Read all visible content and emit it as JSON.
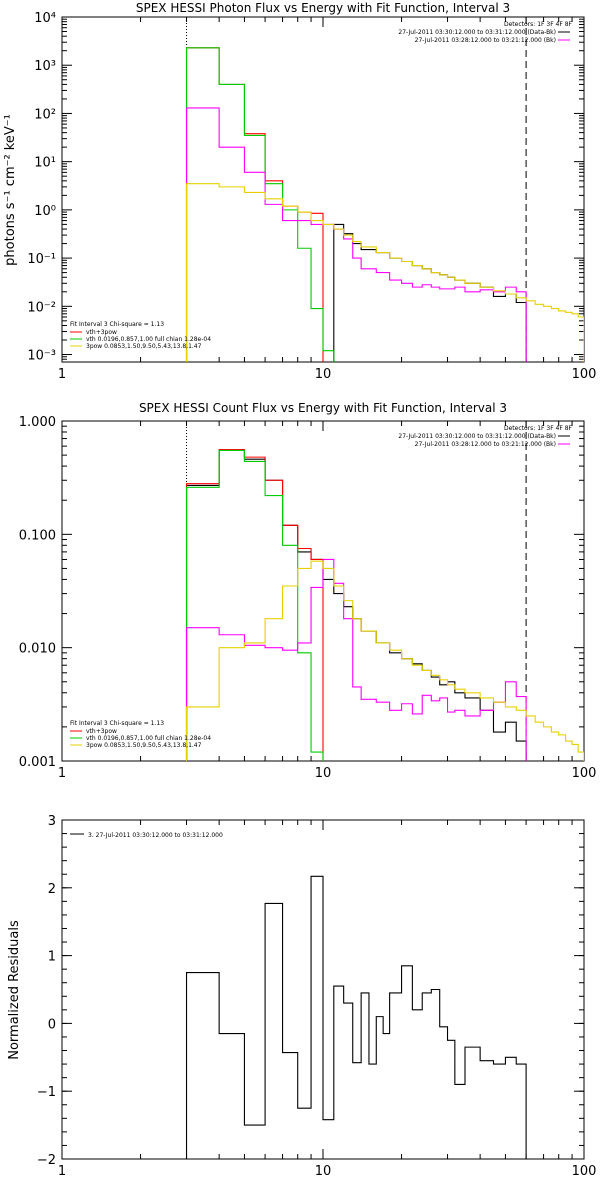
{
  "chart_data": [
    {
      "type": "line",
      "title": "SPEX HESSI Photon Flux vs Energy with Fit Function, Interval 3",
      "ylabel": "photons s⁻¹ cm⁻² keV⁻¹",
      "xlabel": "",
      "xscale": "log",
      "yscale": "log",
      "xlim": [
        1,
        100
      ],
      "ylim": [
        0.0007,
        10000
      ],
      "xticks": [
        {
          "v": 1,
          "label": "1"
        },
        {
          "v": 10,
          "label": "10"
        },
        {
          "v": 100,
          "label": "100"
        }
      ],
      "yticks": [
        {
          "v": 0.001,
          "label": "10⁻³"
        },
        {
          "v": 0.01,
          "label": "10⁻²"
        },
        {
          "v": 0.1,
          "label": "10⁻¹"
        },
        {
          "v": 1,
          "label": "10⁰"
        },
        {
          "v": 10,
          "label": "10¹"
        },
        {
          "v": 100,
          "label": "10²"
        },
        {
          "v": 1000,
          "label": "10³"
        },
        {
          "v": 10000,
          "label": "10⁴"
        }
      ],
      "vlines": [
        {
          "x": 3,
          "style": "dotted"
        },
        {
          "x": 60,
          "style": "dashed"
        }
      ],
      "legend_top": {
        "header": "Detectors: 1F 3F 4F 8F",
        "entries": [
          {
            "label": "27-Jul-2011 03:30:12.000 to 03:31:12.000 (Data-Bk)",
            "color": "#000000"
          },
          {
            "label": "27-Jul-2011 03:28:12.000 to 03:21:12.000 (Bk)",
            "color": "#ff00ff"
          }
        ]
      },
      "legend_bottom": {
        "header": "Fit Interval 3    Chi-square = 1.13",
        "entries": [
          {
            "label": "vth+3pow",
            "color": "#ff0000"
          },
          {
            "label": "vth 0.0196,0.857,1.00  full chian 1.28e-04",
            "color": "#00cc00"
          },
          {
            "label": "3pow 0.0853,1.50,9.50,5.43,13.8,1.47",
            "color": "#e6d000"
          }
        ]
      },
      "series": [
        {
          "key": "black",
          "color": "#000000",
          "edges": [
            3,
            4,
            5,
            6,
            7,
            8,
            9,
            10,
            11,
            12,
            13,
            14,
            16,
            18,
            20,
            22,
            24,
            26,
            28,
            30,
            32,
            35,
            40,
            45,
            50,
            55,
            60
          ],
          "values": [
            0,
            0,
            0,
            0,
            0,
            0,
            0,
            0,
            0.5,
            0.32,
            0.2,
            0.15,
            0.13,
            0.1,
            0.085,
            0.07,
            0.06,
            0.05,
            0.045,
            0.04,
            0.035,
            0.03,
            0.025,
            0.016,
            0.018,
            0.012
          ]
        },
        {
          "key": "red",
          "color": "#ff0000",
          "edges": [
            3,
            4,
            5,
            6,
            7,
            8,
            9,
            10
          ],
          "values": [
            2300,
            400,
            38,
            4,
            1.2,
            0.9,
            0.85
          ]
        },
        {
          "key": "green",
          "color": "#00cc00",
          "edges": [
            3,
            4,
            5,
            6,
            7,
            8,
            9,
            10,
            11
          ],
          "values": [
            2300,
            400,
            35,
            3.5,
            1,
            0.16,
            0.009,
            0.0012
          ]
        },
        {
          "key": "magenta",
          "color": "#ff00ff",
          "edges": [
            3,
            4,
            5,
            6,
            7,
            8,
            9,
            10,
            11,
            12,
            13,
            14,
            16,
            18,
            20,
            22,
            24,
            26,
            28,
            30,
            32,
            35,
            40,
            45,
            50,
            55,
            60
          ],
          "values": [
            130,
            20,
            6,
            1.3,
            0.6,
            0.6,
            0.5,
            0.5,
            0.4,
            0.25,
            0.1,
            0.06,
            0.05,
            0.035,
            0.03,
            0.025,
            0.028,
            0.025,
            0.023,
            0.023,
            0.025,
            0.02,
            0.022,
            0.02,
            0.025,
            0.02
          ]
        },
        {
          "key": "yellow",
          "color": "#e6d000",
          "edges": [
            3,
            4,
            5,
            6,
            7,
            8,
            9,
            10,
            11,
            12,
            13,
            14,
            16,
            18,
            20,
            22,
            24,
            26,
            28,
            30,
            32,
            35,
            40,
            45,
            50,
            55,
            60,
            65,
            70,
            75,
            80,
            85,
            90,
            95,
            100
          ],
          "values": [
            3.5,
            3,
            2.3,
            1.7,
            1.2,
            0.9,
            0.6,
            0.5,
            0.4,
            0.3,
            0.22,
            0.17,
            0.13,
            0.1,
            0.085,
            0.07,
            0.06,
            0.05,
            0.045,
            0.04,
            0.035,
            0.03,
            0.025,
            0.021,
            0.018,
            0.015,
            0.013,
            0.011,
            0.01,
            0.009,
            0.008,
            0.0075,
            0.007,
            0.006
          ]
        }
      ]
    },
    {
      "type": "line",
      "title": "SPEX HESSI Count Flux vs Energy with Fit Function, Interval 3",
      "ylabel": "",
      "xlabel": "",
      "xscale": "log",
      "yscale": "log",
      "xlim": [
        1,
        100
      ],
      "ylim": [
        0.001,
        1
      ],
      "xticks": [
        {
          "v": 1,
          "label": "1"
        },
        {
          "v": 10,
          "label": "10"
        },
        {
          "v": 100,
          "label": "100"
        }
      ],
      "yticks": [
        {
          "v": 0.001,
          "label": "0.001"
        },
        {
          "v": 0.01,
          "label": "0.010"
        },
        {
          "v": 0.1,
          "label": "0.100"
        },
        {
          "v": 1,
          "label": "1.000"
        }
      ],
      "vlines": [
        {
          "x": 3,
          "style": "dotted"
        },
        {
          "x": 60,
          "style": "dashed"
        }
      ],
      "legend_top": {
        "header": "Detectors: 1F 3F 4F 8F",
        "entries": [
          {
            "label": "27-Jul-2011 03:30:12.000 to 03:31:12.000 (Data-Bk)",
            "color": "#000000"
          },
          {
            "label": "27-Jul-2011 03:28:12.000 to 03:21:12.000 (Bk)",
            "color": "#ff00ff"
          }
        ]
      },
      "legend_bottom": {
        "header": "Fit Interval 3    Chi-square = 1.13",
        "entries": [
          {
            "label": "vth+3pow",
            "color": "#ff0000"
          },
          {
            "label": "vth 0.0196,0.857,1.00  full chian 1.28e-04",
            "color": "#00cc00"
          },
          {
            "label": "3pow 0.0853,1.50,9.50,5.43,13.8,1.47",
            "color": "#e6d000"
          }
        ]
      },
      "series": [
        {
          "key": "black",
          "color": "#000000",
          "edges": [
            3,
            4,
            5,
            6,
            7,
            8,
            9,
            10,
            11,
            12,
            13,
            14,
            16,
            18,
            20,
            22,
            24,
            26,
            28,
            30,
            32,
            35,
            40,
            45,
            50,
            55,
            60
          ],
          "values": [
            0.27,
            0.55,
            0.46,
            0.3,
            0.12,
            0.07,
            0.06,
            0.04,
            0.03,
            0.023,
            0.018,
            0.014,
            0.011,
            0.009,
            0.008,
            0.0072,
            0.0063,
            0.0055,
            0.0047,
            0.005,
            0.004,
            0.0036,
            0.0028,
            0.0018,
            0.0022,
            0.0015
          ]
        },
        {
          "key": "red",
          "color": "#ff0000",
          "edges": [
            3,
            4,
            5,
            6,
            7,
            8,
            9,
            10
          ],
          "values": [
            0.28,
            0.56,
            0.48,
            0.3,
            0.12,
            0.075,
            0.06
          ]
        },
        {
          "key": "green",
          "color": "#00cc00",
          "edges": [
            3,
            4,
            5,
            6,
            7,
            8,
            9,
            10
          ],
          "values": [
            0.26,
            0.55,
            0.44,
            0.22,
            0.08,
            0.009,
            0.0012
          ]
        },
        {
          "key": "magenta",
          "color": "#ff00ff",
          "edges": [
            3,
            4,
            5,
            6,
            7,
            8,
            9,
            10,
            11,
            12,
            13,
            14,
            16,
            18,
            20,
            22,
            24,
            26,
            28,
            30,
            32,
            35,
            40,
            45,
            50,
            55,
            60
          ],
          "values": [
            0.015,
            0.013,
            0.0105,
            0.01,
            0.0095,
            0.011,
            0.034,
            0.06,
            0.037,
            0.018,
            0.0045,
            0.0035,
            0.0033,
            0.0028,
            0.0032,
            0.0026,
            0.0038,
            0.0034,
            0.0036,
            0.0027,
            0.0028,
            0.0025,
            0.0028,
            0.0033,
            0.005,
            0.0037
          ]
        },
        {
          "key": "yellow",
          "color": "#e6d000",
          "edges": [
            3,
            4,
            5,
            6,
            7,
            8,
            9,
            10,
            11,
            12,
            13,
            14,
            16,
            18,
            20,
            22,
            24,
            26,
            28,
            30,
            32,
            35,
            40,
            45,
            50,
            55,
            60,
            65,
            70,
            75,
            80,
            85,
            90,
            95,
            100
          ],
          "values": [
            0.003,
            0.01,
            0.011,
            0.018,
            0.035,
            0.05,
            0.058,
            0.05,
            0.035,
            0.026,
            0.018,
            0.014,
            0.011,
            0.0095,
            0.008,
            0.007,
            0.0063,
            0.0057,
            0.0052,
            0.0047,
            0.0043,
            0.004,
            0.0036,
            0.0033,
            0.003,
            0.0028,
            0.0025,
            0.0022,
            0.002,
            0.0018,
            0.0017,
            0.0015,
            0.0014,
            0.0012
          ]
        }
      ]
    },
    {
      "type": "line",
      "title": "",
      "ylabel": "Normalized Residuals",
      "xlabel": "",
      "xscale": "log",
      "yscale": "linear",
      "xlim": [
        1,
        100
      ],
      "ylim": [
        -2,
        3
      ],
      "xticks": [
        {
          "v": 1,
          "label": "1"
        },
        {
          "v": 10,
          "label": "10"
        },
        {
          "v": 100,
          "label": "100"
        }
      ],
      "yticks": [
        {
          "v": -2,
          "label": "−2"
        },
        {
          "v": -1,
          "label": "−1"
        },
        {
          "v": 0,
          "label": "0"
        },
        {
          "v": 1,
          "label": "1"
        },
        {
          "v": 2,
          "label": "2"
        },
        {
          "v": 3,
          "label": "3"
        }
      ],
      "legend_top": {
        "header": "",
        "entries": [
          {
            "label": "3. 27-Jul-2011 03:30:12.000 to 03:31:12.000",
            "color": "#000000"
          }
        ]
      },
      "series": [
        {
          "key": "black",
          "color": "#000000",
          "edges": [
            3,
            4,
            5,
            6,
            7,
            8,
            9,
            10,
            11,
            12,
            13,
            14,
            15,
            16,
            17,
            18,
            20,
            22,
            24,
            26,
            28,
            30,
            32,
            35,
            40,
            45,
            50,
            55,
            60
          ],
          "values": [
            0.75,
            -0.15,
            -1.5,
            1.77,
            -0.43,
            -1.25,
            2.17,
            -1.42,
            0.55,
            0.3,
            -0.58,
            0.45,
            -0.6,
            0.1,
            -0.15,
            0.45,
            0.85,
            0.2,
            0.45,
            0.5,
            -0.05,
            -0.25,
            -0.9,
            -0.35,
            -0.55,
            -0.6,
            -0.5,
            -0.6
          ]
        }
      ]
    }
  ]
}
